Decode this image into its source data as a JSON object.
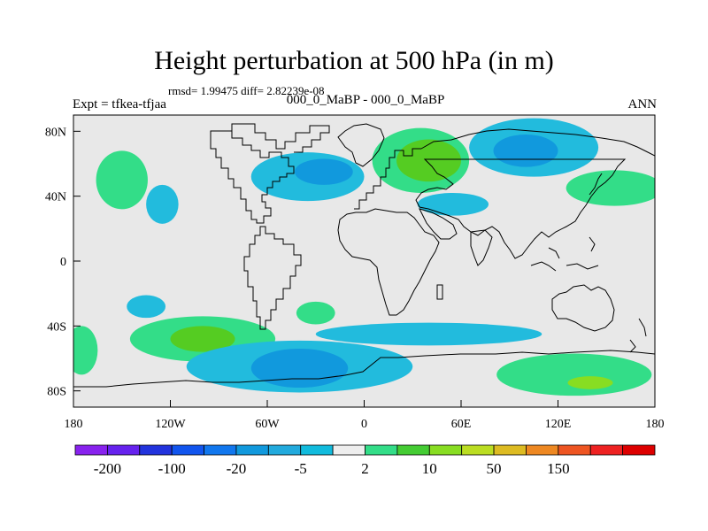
{
  "title": "Height perturbation at 500 hPa (in m)",
  "stats": "rmsd= 1.99475 diff= 2.82239e-08",
  "left_label": "Expt = tfkea-tfjaa",
  "center_label": "000_0_MaBP - 000_0_MaBP",
  "right_label": "ANN",
  "map": {
    "lon_range": [
      -180,
      180
    ],
    "lat_range": [
      -90,
      90
    ],
    "land_background": "#e8e8e8",
    "lon_ticks": [
      {
        "value": -180,
        "label": "180"
      },
      {
        "value": -120,
        "label": "120W"
      },
      {
        "value": -60,
        "label": "60W"
      },
      {
        "value": 0,
        "label": "0"
      },
      {
        "value": 60,
        "label": "60E"
      },
      {
        "value": 120,
        "label": "120E"
      },
      {
        "value": 180,
        "label": "180"
      }
    ],
    "lat_ticks": [
      {
        "value": 80,
        "label": "80N"
      },
      {
        "value": 40,
        "label": "40N"
      },
      {
        "value": 0,
        "label": "0"
      },
      {
        "value": -40,
        "label": "40S"
      },
      {
        "value": -80,
        "label": "80S"
      }
    ],
    "contour_regions": [
      {
        "name": "pacific-north-west",
        "lon": -150,
        "lat": 50,
        "rlon": 16,
        "rlat": 18,
        "color": "#33dd88"
      },
      {
        "name": "pacific-north-east",
        "lon": -125,
        "lat": 35,
        "rlon": 10,
        "rlat": 12,
        "color": "#22bbdd"
      },
      {
        "name": "north-atlantic",
        "lon": -35,
        "lat": 52,
        "rlon": 35,
        "rlat": 15,
        "color": "#22bbdd"
      },
      {
        "name": "north-atlantic-core",
        "lon": -25,
        "lat": 55,
        "rlon": 18,
        "rlat": 8,
        "color": "#1199dd"
      },
      {
        "name": "eurasia-north",
        "lon": 35,
        "lat": 62,
        "rlon": 30,
        "rlat": 20,
        "color": "#33dd88"
      },
      {
        "name": "eurasia-north-core",
        "lon": 40,
        "lat": 62,
        "rlon": 20,
        "rlat": 13,
        "color": "#55cc22"
      },
      {
        "name": "arctic-east",
        "lon": 105,
        "lat": 70,
        "rlon": 40,
        "rlat": 18,
        "color": "#22bbdd"
      },
      {
        "name": "arctic-east-core",
        "lon": 100,
        "lat": 68,
        "rlon": 20,
        "rlat": 10,
        "color": "#1199dd"
      },
      {
        "name": "asia-east-mid",
        "lon": 55,
        "lat": 35,
        "rlon": 22,
        "rlat": 7,
        "color": "#22bbdd"
      },
      {
        "name": "pacific-north-japan",
        "lon": 155,
        "lat": 45,
        "rlon": 30,
        "rlat": 11,
        "color": "#33dd88"
      },
      {
        "name": "south-pacific-west",
        "lon": -135,
        "lat": -28,
        "rlon": 12,
        "rlat": 7,
        "color": "#22bbdd"
      },
      {
        "name": "south-pacific-south",
        "lon": -100,
        "lat": -48,
        "rlon": 45,
        "rlat": 14,
        "color": "#33dd88"
      },
      {
        "name": "south-pacific-core",
        "lon": -100,
        "lat": -48,
        "rlon": 20,
        "rlat": 8,
        "color": "#55cc22"
      },
      {
        "name": "south-atlantic-mid",
        "lon": -30,
        "lat": -32,
        "rlon": 12,
        "rlat": 7,
        "color": "#33dd88"
      },
      {
        "name": "southern-ocean-blue",
        "lon": -40,
        "lat": -65,
        "rlon": 70,
        "rlat": 16,
        "color": "#22bbdd"
      },
      {
        "name": "southern-ocean-blue-core",
        "lon": -40,
        "lat": -66,
        "rlon": 30,
        "rlat": 12,
        "color": "#1199dd"
      },
      {
        "name": "indian-ocean-blue",
        "lon": 40,
        "lat": -45,
        "rlon": 70,
        "rlat": 7,
        "color": "#22bbdd"
      },
      {
        "name": "southern-ocean-east",
        "lon": 130,
        "lat": -70,
        "rlon": 48,
        "rlat": 13,
        "color": "#33dd88"
      },
      {
        "name": "southern-ocean-east-core",
        "lon": 140,
        "lat": -75,
        "rlon": 14,
        "rlat": 4,
        "color": "#88dd22"
      },
      {
        "name": "atlantic-south-west",
        "lon": -175,
        "lat": -55,
        "rlon": 10,
        "rlat": 15,
        "color": "#33dd88"
      }
    ]
  },
  "colorbar": {
    "colors": [
      "#8822ee",
      "#6622ee",
      "#2233dd",
      "#1155ee",
      "#1177ee",
      "#1199dd",
      "#22aadd",
      "#11bbdd",
      "#eeeeee",
      "#33dd88",
      "#44cc33",
      "#88dd22",
      "#bbdd22",
      "#ddbb22",
      "#ee8822",
      "#ee5522",
      "#ee2222",
      "#dd0000"
    ],
    "labels": [
      {
        "boundary": 1,
        "text": "-200"
      },
      {
        "boundary": 3,
        "text": "-100"
      },
      {
        "boundary": 5,
        "text": "-20"
      },
      {
        "boundary": 7,
        "text": "-5"
      },
      {
        "boundary": 9,
        "text": "2"
      },
      {
        "boundary": 11,
        "text": "10"
      },
      {
        "boundary": 13,
        "text": "50"
      },
      {
        "boundary": 15,
        "text": "150"
      }
    ]
  }
}
